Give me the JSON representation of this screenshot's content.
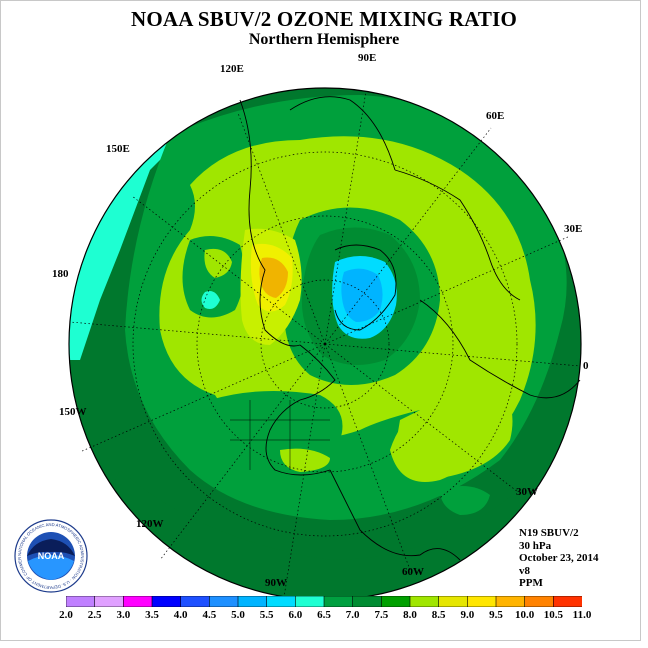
{
  "header": {
    "title": "NOAA SBUV/2 OZONE MIXING RATIO",
    "subtitle": "Northern Hemisphere"
  },
  "map": {
    "projection": "north polar stereographic",
    "longitude_labels": {
      "lon_90e": "90E",
      "lon_60e": "60E",
      "lon_30e": "30E",
      "lon_0": "0",
      "lon_30w": "30W",
      "lon_60w": "60W",
      "lon_90w": "90W",
      "lon_120w": "120W",
      "lon_150w": "150W",
      "lon_180": "180",
      "lon_150e": "150E",
      "lon_120e": "120E"
    },
    "features": [
      "ozone minimum over Arctic / Scandinavia (5.0-5.5 ppm)",
      "ozone maximum over eastern Siberia (8.5-9.5 ppm)"
    ]
  },
  "info": {
    "satellite": "N19 SBUV/2",
    "level": "30 hPa",
    "date": "October 23, 2014",
    "version": "v8",
    "units": "PPM"
  },
  "colorbar": {
    "ticks": [
      "2.0",
      "2.5",
      "3.0",
      "3.5",
      "4.0",
      "4.5",
      "5.0",
      "5.5",
      "6.0",
      "6.5",
      "7.0",
      "7.5",
      "8.0",
      "8.5",
      "9.0",
      "9.5",
      "10.0",
      "10.5",
      "11.0"
    ],
    "colors": [
      "#c080ff",
      "#e0a0ff",
      "#ff00ff",
      "#0000ff",
      "#1e50ff",
      "#1e90ff",
      "#00b4ff",
      "#00dcff",
      "#1effd2",
      "#00a040",
      "#008c32",
      "#00a000",
      "#a0e600",
      "#e6e600",
      "#ffe600",
      "#ffb400",
      "#ff8200",
      "#ff3200",
      "#dc0000",
      "#8c5028"
    ],
    "palette_used": {
      "deep_green": "#00782d",
      "green": "#00a03c",
      "mid_green": "#2db42d",
      "yellow_green": "#a0e600",
      "light_yellow_green": "#c8f000",
      "yellow": "#f0f000",
      "orange": "#f0b400",
      "cyan": "#1effd2",
      "light_blue": "#00dcff",
      "blue": "#00b4ff"
    }
  },
  "logo": {
    "text": "NOAA",
    "ring_text": "NATIONAL OCEANIC AND ATMOSPHERIC ADMINISTRATION · U.S. DEPARTMENT OF COMMERCE"
  }
}
